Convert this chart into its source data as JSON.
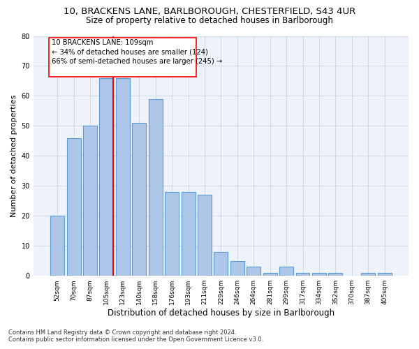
{
  "title_line1": "10, BRACKENS LANE, BARLBOROUGH, CHESTERFIELD, S43 4UR",
  "title_line2": "Size of property relative to detached houses in Barlborough",
  "xlabel": "Distribution of detached houses by size in Barlborough",
  "ylabel": "Number of detached properties",
  "categories": [
    "52sqm",
    "70sqm",
    "87sqm",
    "105sqm",
    "123sqm",
    "140sqm",
    "158sqm",
    "176sqm",
    "193sqm",
    "211sqm",
    "229sqm",
    "246sqm",
    "264sqm",
    "281sqm",
    "299sqm",
    "317sqm",
    "334sqm",
    "352sqm",
    "370sqm",
    "387sqm",
    "405sqm"
  ],
  "values": [
    20,
    46,
    50,
    66,
    66,
    51,
    59,
    28,
    28,
    27,
    8,
    5,
    3,
    1,
    3,
    1,
    1,
    1,
    0,
    1,
    1
  ],
  "bar_color": "#aec6e8",
  "bar_edge_color": "#5b9bd5",
  "grid_color": "#d0d8e8",
  "vline_x_index": 3,
  "vline_color": "red",
  "annotation_line1": "10 BRACKENS LANE: 109sqm",
  "annotation_line2": "← 34% of detached houses are smaller (124)",
  "annotation_line3": "66% of semi-detached houses are larger (245) →",
  "ylim": [
    0,
    80
  ],
  "yticks": [
    0,
    10,
    20,
    30,
    40,
    50,
    60,
    70,
    80
  ],
  "footnote_line1": "Contains HM Land Registry data © Crown copyright and database right 2024.",
  "footnote_line2": "Contains public sector information licensed under the Open Government Licence v3.0.",
  "bg_color": "#eef2fa",
  "title_fontsize": 9.5,
  "subtitle_fontsize": 8.5,
  "tick_fontsize": 6.5,
  "ylabel_fontsize": 8,
  "xlabel_fontsize": 8.5,
  "annot_fontsize": 7.2,
  "footnote_fontsize": 6.0
}
